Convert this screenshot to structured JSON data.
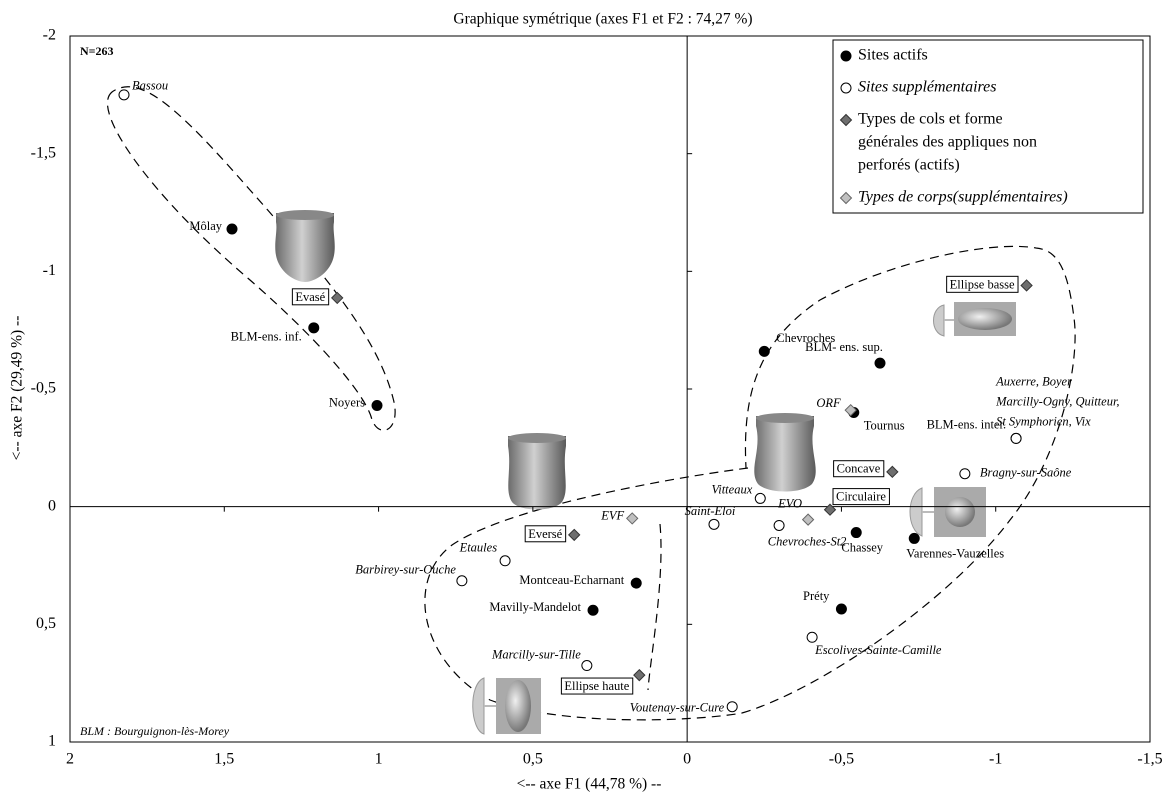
{
  "chart_data": {
    "type": "scatter",
    "title": "Graphique symétrique (axes F1 et F2 : 74,27 %)",
    "x_label": "<-- axe F1 (44,78 %) --",
    "y_label": "<-- axe F2 (29,49 %) --",
    "annotations": [
      "N=263",
      "BLM : Bourguignon-lès-Morey"
    ],
    "xlim": [
      2,
      -1.5
    ],
    "ylim": [
      1,
      -2
    ],
    "xticks": [
      2,
      {
        "value": 1.5,
        "label": "1,5"
      },
      1,
      {
        "value": 0.5,
        "label": "0,5"
      },
      0,
      {
        "value": -0.5,
        "label": "-0,5"
      },
      -1,
      {
        "value": -1.5,
        "label": "-1,5"
      }
    ],
    "yticks": [
      -2,
      {
        "value": -1.5,
        "label": "-1,5"
      },
      -1,
      {
        "value": -0.5,
        "label": "-0,5"
      },
      0,
      {
        "value": 0.5,
        "label": "0,5"
      },
      1
    ],
    "legend_position": "upper right",
    "series": [
      {
        "name": [
          "Sites actifs"
        ],
        "marker": "circle",
        "color": "#000000",
        "stroke": "#000000",
        "italic": false,
        "boxed": false,
        "x": [
          1.475,
          1.21,
          1.005,
          -0.25,
          -0.625,
          -0.54,
          -1.066,
          -0.548,
          -0.736,
          0.165,
          0.305,
          -0.5
        ],
        "y": [
          -1.18,
          -0.76,
          -0.43,
          -0.66,
          -0.61,
          -0.4,
          -0.29,
          0.11,
          0.135,
          0.325,
          0.44,
          0.435
        ],
        "labels": [
          "Môlay",
          "BLM-ens. inf.",
          "Noyers",
          "Chevroches",
          "BLM- ens. sup.",
          "Tournus",
          "BLM-ens. inter.",
          "Chassey",
          "Varennes-Vauzelles",
          "Montceau-Echarnant",
          "Mavilly-Mandelot",
          "Préty"
        ]
      },
      {
        "name": [
          "Sites supplémentaires"
        ],
        "marker": "circle",
        "color": "#ffffff",
        "stroke": "#000000",
        "italic": true,
        "boxed": false,
        "x": [
          1.825,
          -0.237,
          -0.087,
          -0.298,
          -0.9,
          0.59,
          0.73,
          0.325,
          -0.405,
          -0.146,
          -1.066
        ],
        "y": [
          -1.75,
          -0.035,
          0.075,
          0.08,
          -0.14,
          0.23,
          0.315,
          0.675,
          0.555,
          0.85,
          -0.29
        ],
        "labels": [
          "Bassou",
          "Vitteaux",
          "Saint-Eloi",
          "Chevroches-St2",
          "Bragny-sur-Saône",
          "Etaules",
          "Barbirey-sur-Ouche",
          "Marcilly-sur-Tille",
          "Escolives-Sainte-Camille",
          "Voutenay-sur-Cure",
          [
            "Auxerre, Boyer",
            "Marcilly-Ogny, Quitteur,",
            "St Symphorien, Vix"
          ]
        ]
      },
      {
        "name": [
          "Types de cols et forme",
          "générales des appliques non",
          "perforés (actifs)"
        ],
        "marker": "diamond",
        "color": "#6e6e6e",
        "stroke": "#333333",
        "italic": false,
        "boxed": true,
        "x": [
          1.134,
          0.366,
          0.155,
          -1.1,
          -0.665,
          -0.463
        ],
        "y": [
          -0.887,
          0.12,
          0.716,
          -0.94,
          -0.148,
          0.013
        ],
        "labels": [
          "Evasé",
          "Eversé",
          "Ellipse haute",
          "Ellipse basse",
          "Concave",
          "Circulaire"
        ]
      },
      {
        "name": [
          "Types de corps(supplémentaires)"
        ],
        "marker": "diamond",
        "color": "#c0c0c0",
        "stroke": "#666666",
        "italic": true,
        "boxed": false,
        "x": [
          0.178,
          -0.392,
          -0.53
        ],
        "y": [
          0.05,
          0.055,
          -0.41
        ],
        "labels": [
          "EVF",
          "EVO",
          "ORF"
        ]
      }
    ]
  }
}
